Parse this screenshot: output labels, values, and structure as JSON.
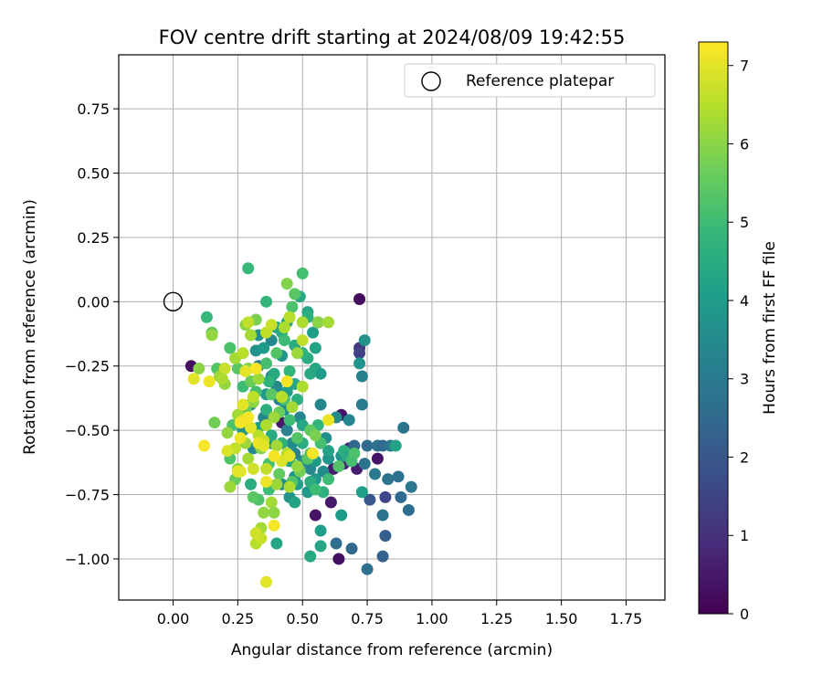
{
  "chart_data": {
    "type": "scatter",
    "title": "FOV centre drift starting at 2024/08/09 19:42:55",
    "xlabel": "Angular distance from reference (arcmin)",
    "ylabel": "Rotation from reference (arcmin)",
    "xlim": [
      -0.21,
      1.9
    ],
    "ylim": [
      -1.16,
      0.96
    ],
    "xticks": [
      0.0,
      0.25,
      0.5,
      0.75,
      1.0,
      1.25,
      1.5,
      1.75
    ],
    "yticks": [
      0.75,
      0.5,
      0.25,
      0.0,
      -0.25,
      -0.5,
      -0.75,
      -1.0
    ],
    "xtick_labels": [
      "0.00",
      "0.25",
      "0.50",
      "0.75",
      "1.00",
      "1.25",
      "1.50",
      "1.75"
    ],
    "ytick_labels": [
      "0.75",
      "0.50",
      "0.25",
      "0.00",
      "−0.25",
      "−0.50",
      "−0.75",
      "−1.00"
    ],
    "grid": true,
    "legend": {
      "position": "top-right",
      "label": "Reference platepar"
    },
    "reference_point": {
      "x": 0.0,
      "y": 0.0
    },
    "colorbar": {
      "label": "Hours from first FF file",
      "min": 0,
      "max": 7.3,
      "ticks": [
        0,
        1,
        2,
        3,
        4,
        5,
        6,
        7
      ],
      "tick_labels": [
        "0",
        "1",
        "2",
        "3",
        "4",
        "5",
        "6",
        "7"
      ],
      "colormap": "viridis"
    },
    "colormap_stops": [
      "#440154",
      "#482878",
      "#3e4989",
      "#31688e",
      "#26828e",
      "#1f9e89",
      "#35b779",
      "#6ece58",
      "#b5de2b",
      "#fde725"
    ],
    "points": [
      {
        "x": 0.72,
        "y": 0.01,
        "c": 0.2
      },
      {
        "x": 0.56,
        "y": -0.08,
        "c": 0.3
      },
      {
        "x": 0.07,
        "y": -0.25,
        "c": 0.3
      },
      {
        "x": 0.65,
        "y": -0.44,
        "c": 0.4
      },
      {
        "x": 0.42,
        "y": -0.47,
        "c": 0.5
      },
      {
        "x": 0.55,
        "y": -0.83,
        "c": 0.4
      },
      {
        "x": 0.64,
        "y": -1.0,
        "c": 0.3
      },
      {
        "x": 0.61,
        "y": -0.78,
        "c": 0.5
      },
      {
        "x": 0.62,
        "y": -0.65,
        "c": 0.6
      },
      {
        "x": 0.79,
        "y": -0.61,
        "c": 0.4
      },
      {
        "x": 0.71,
        "y": -0.65,
        "c": 0.6
      },
      {
        "x": 0.68,
        "y": -0.57,
        "c": 0.7
      },
      {
        "x": 0.66,
        "y": -0.63,
        "c": 0.8
      },
      {
        "x": 0.72,
        "y": -0.18,
        "c": 1.2
      },
      {
        "x": 0.72,
        "y": -0.2,
        "c": 1.5
      },
      {
        "x": 0.82,
        "y": -0.76,
        "c": 1.6
      },
      {
        "x": 0.76,
        "y": -0.77,
        "c": 2.0
      },
      {
        "x": 0.82,
        "y": -0.91,
        "c": 2.2
      },
      {
        "x": 0.81,
        "y": -0.99,
        "c": 2.3
      },
      {
        "x": 0.69,
        "y": -0.96,
        "c": 2.5
      },
      {
        "x": 0.63,
        "y": -0.94,
        "c": 2.6
      },
      {
        "x": 0.75,
        "y": -1.04,
        "c": 2.7
      },
      {
        "x": 0.81,
        "y": -0.83,
        "c": 2.8
      },
      {
        "x": 0.91,
        "y": -0.81,
        "c": 2.6
      },
      {
        "x": 0.88,
        "y": -0.76,
        "c": 2.5
      },
      {
        "x": 0.92,
        "y": -0.72,
        "c": 2.9
      },
      {
        "x": 0.87,
        "y": -0.68,
        "c": 2.7
      },
      {
        "x": 0.83,
        "y": -0.69,
        "c": 2.8
      },
      {
        "x": 0.78,
        "y": -0.67,
        "c": 3.0
      },
      {
        "x": 0.74,
        "y": -0.63,
        "c": 2.8
      },
      {
        "x": 0.7,
        "y": -0.56,
        "c": 2.4
      },
      {
        "x": 0.75,
        "y": -0.56,
        "c": 2.6
      },
      {
        "x": 0.79,
        "y": -0.56,
        "c": 2.7
      },
      {
        "x": 0.81,
        "y": -0.56,
        "c": 2.5
      },
      {
        "x": 0.84,
        "y": -0.56,
        "c": 2.9
      },
      {
        "x": 0.89,
        "y": -0.49,
        "c": 2.8
      },
      {
        "x": 0.73,
        "y": -0.4,
        "c": 3.0
      },
      {
        "x": 0.73,
        "y": -0.29,
        "c": 3.2
      },
      {
        "x": 0.72,
        "y": -0.24,
        "c": 3.8
      },
      {
        "x": 0.74,
        "y": -0.15,
        "c": 3.7
      },
      {
        "x": 0.63,
        "y": -0.45,
        "c": 3.5
      },
      {
        "x": 0.57,
        "y": -0.4,
        "c": 3.4
      },
      {
        "x": 0.68,
        "y": -0.46,
        "c": 3.3
      },
      {
        "x": 0.59,
        "y": -0.53,
        "c": 3.6
      },
      {
        "x": 0.6,
        "y": -0.61,
        "c": 3.8
      },
      {
        "x": 0.65,
        "y": -0.6,
        "c": 3.7
      },
      {
        "x": 0.58,
        "y": -0.66,
        "c": 3.5
      },
      {
        "x": 0.55,
        "y": -0.69,
        "c": 3.9
      },
      {
        "x": 0.53,
        "y": -0.65,
        "c": 3.4
      },
      {
        "x": 0.5,
        "y": -0.62,
        "c": 3.6
      },
      {
        "x": 0.47,
        "y": -0.59,
        "c": 3.3
      },
      {
        "x": 0.46,
        "y": -0.55,
        "c": 3.5
      },
      {
        "x": 0.44,
        "y": -0.5,
        "c": 3.2
      },
      {
        "x": 0.49,
        "y": -0.45,
        "c": 3.4
      },
      {
        "x": 0.43,
        "y": -0.42,
        "c": 3.6
      },
      {
        "x": 0.41,
        "y": -0.38,
        "c": 3.3
      },
      {
        "x": 0.4,
        "y": -0.33,
        "c": 3.5
      },
      {
        "x": 0.38,
        "y": -0.29,
        "c": 3.2
      },
      {
        "x": 0.33,
        "y": -0.25,
        "c": 3.1
      },
      {
        "x": 0.32,
        "y": -0.19,
        "c": 3.7
      },
      {
        "x": 0.33,
        "y": -0.13,
        "c": 3.6
      },
      {
        "x": 0.38,
        "y": -0.15,
        "c": 3.4
      },
      {
        "x": 0.42,
        "y": -0.21,
        "c": 3.8
      },
      {
        "x": 0.36,
        "y": -0.36,
        "c": 3.9
      },
      {
        "x": 0.3,
        "y": -0.4,
        "c": 3.5
      },
      {
        "x": 0.35,
        "y": -0.45,
        "c": 3.3
      },
      {
        "x": 0.27,
        "y": -0.5,
        "c": 3.7
      },
      {
        "x": 0.31,
        "y": -0.57,
        "c": 3.4
      },
      {
        "x": 0.38,
        "y": -0.55,
        "c": 3.6
      },
      {
        "x": 0.47,
        "y": -0.68,
        "c": 3.8
      },
      {
        "x": 0.42,
        "y": -0.71,
        "c": 3.5
      },
      {
        "x": 0.45,
        "y": -0.76,
        "c": 3.7
      },
      {
        "x": 0.52,
        "y": -0.74,
        "c": 3.9
      },
      {
        "x": 0.57,
        "y": -0.89,
        "c": 4.1
      },
      {
        "x": 0.65,
        "y": -0.83,
        "c": 4.0
      },
      {
        "x": 0.57,
        "y": -0.95,
        "c": 4.3
      },
      {
        "x": 0.53,
        "y": -0.99,
        "c": 4.4
      },
      {
        "x": 0.4,
        "y": -0.94,
        "c": 4.3
      },
      {
        "x": 0.47,
        "y": -0.78,
        "c": 4.2
      },
      {
        "x": 0.48,
        "y": -0.71,
        "c": 4.1
      },
      {
        "x": 0.53,
        "y": -0.7,
        "c": 4.5
      },
      {
        "x": 0.55,
        "y": -0.62,
        "c": 4.0
      },
      {
        "x": 0.6,
        "y": -0.58,
        "c": 4.2
      },
      {
        "x": 0.66,
        "y": -0.58,
        "c": 4.6
      },
      {
        "x": 0.67,
        "y": -0.6,
        "c": 4.4
      },
      {
        "x": 0.86,
        "y": -0.56,
        "c": 4.2
      },
      {
        "x": 0.73,
        "y": -0.74,
        "c": 4.1
      },
      {
        "x": 0.55,
        "y": -0.26,
        "c": 4.3
      },
      {
        "x": 0.57,
        "y": -0.28,
        "c": 4.0
      },
      {
        "x": 0.53,
        "y": -0.28,
        "c": 4.4
      },
      {
        "x": 0.52,
        "y": -0.22,
        "c": 4.5
      },
      {
        "x": 0.55,
        "y": -0.18,
        "c": 4.2
      },
      {
        "x": 0.52,
        "y": -0.04,
        "c": 4.3
      },
      {
        "x": 0.52,
        "y": -0.06,
        "c": 4.6
      },
      {
        "x": 0.49,
        "y": 0.02,
        "c": 4.4
      },
      {
        "x": 0.54,
        "y": -0.12,
        "c": 4.1
      },
      {
        "x": 0.5,
        "y": -0.2,
        "c": 4.7
      },
      {
        "x": 0.47,
        "y": -0.17,
        "c": 4.5
      },
      {
        "x": 0.45,
        "y": -0.27,
        "c": 4.8
      },
      {
        "x": 0.47,
        "y": -0.32,
        "c": 4.3
      },
      {
        "x": 0.48,
        "y": -0.38,
        "c": 4.6
      },
      {
        "x": 0.44,
        "y": -0.35,
        "c": 4.1
      },
      {
        "x": 0.39,
        "y": -0.28,
        "c": 4.4
      },
      {
        "x": 0.37,
        "y": -0.31,
        "c": 4.7
      },
      {
        "x": 0.35,
        "y": -0.18,
        "c": 4.0
      },
      {
        "x": 0.4,
        "y": -0.1,
        "c": 4.2
      },
      {
        "x": 0.42,
        "y": -0.12,
        "c": 4.5
      },
      {
        "x": 0.44,
        "y": -0.08,
        "c": 4.3
      },
      {
        "x": 0.36,
        "y": -0.42,
        "c": 4.6
      },
      {
        "x": 0.33,
        "y": -0.49,
        "c": 4.1
      },
      {
        "x": 0.38,
        "y": -0.52,
        "c": 4.4
      },
      {
        "x": 0.42,
        "y": -0.55,
        "c": 4.7
      },
      {
        "x": 0.45,
        "y": -0.62,
        "c": 4.2
      },
      {
        "x": 0.5,
        "y": -0.55,
        "c": 4.5
      },
      {
        "x": 0.5,
        "y": -0.48,
        "c": 4.3
      },
      {
        "x": 0.56,
        "y": -0.48,
        "c": 4.8
      },
      {
        "x": 0.36,
        "y": 0.0,
        "c": 4.8
      },
      {
        "x": 0.29,
        "y": 0.13,
        "c": 4.9
      },
      {
        "x": 0.13,
        "y": -0.06,
        "c": 4.9
      },
      {
        "x": 0.3,
        "y": -0.71,
        "c": 4.5
      },
      {
        "x": 0.58,
        "y": -0.74,
        "c": 4.6
      },
      {
        "x": 0.55,
        "y": -0.73,
        "c": 5.0
      },
      {
        "x": 0.69,
        "y": -0.62,
        "c": 5.1
      },
      {
        "x": 0.7,
        "y": -0.59,
        "c": 5.2
      },
      {
        "x": 0.64,
        "y": -0.64,
        "c": 5.3
      },
      {
        "x": 0.6,
        "y": -0.69,
        "c": 5.0
      },
      {
        "x": 0.53,
        "y": -0.59,
        "c": 5.4
      },
      {
        "x": 0.57,
        "y": -0.55,
        "c": 5.1
      },
      {
        "x": 0.53,
        "y": -0.5,
        "c": 5.5
      },
      {
        "x": 0.48,
        "y": -0.53,
        "c": 5.3
      },
      {
        "x": 0.45,
        "y": -0.46,
        "c": 5.0
      },
      {
        "x": 0.41,
        "y": -0.43,
        "c": 5.6
      },
      {
        "x": 0.43,
        "y": -0.38,
        "c": 5.2
      },
      {
        "x": 0.38,
        "y": -0.36,
        "c": 5.4
      },
      {
        "x": 0.36,
        "y": -0.24,
        "c": 5.1
      },
      {
        "x": 0.4,
        "y": -0.2,
        "c": 5.3
      },
      {
        "x": 0.43,
        "y": -0.15,
        "c": 5.0
      },
      {
        "x": 0.45,
        "y": -0.06,
        "c": 5.5
      },
      {
        "x": 0.46,
        "y": -0.02,
        "c": 5.2
      },
      {
        "x": 0.47,
        "y": 0.03,
        "c": 5.4
      },
      {
        "x": 0.5,
        "y": 0.11,
        "c": 5.1
      },
      {
        "x": 0.22,
        "y": -0.18,
        "c": 5.2
      },
      {
        "x": 0.17,
        "y": -0.26,
        "c": 5.3
      },
      {
        "x": 0.15,
        "y": -0.12,
        "c": 5.5
      },
      {
        "x": 0.25,
        "y": -0.26,
        "c": 5.4
      },
      {
        "x": 0.27,
        "y": -0.33,
        "c": 5.0
      },
      {
        "x": 0.3,
        "y": -0.31,
        "c": 5.6
      },
      {
        "x": 0.32,
        "y": -0.35,
        "c": 5.1
      },
      {
        "x": 0.28,
        "y": -0.42,
        "c": 5.5
      },
      {
        "x": 0.23,
        "y": -0.48,
        "c": 5.2
      },
      {
        "x": 0.16,
        "y": -0.47,
        "c": 5.7
      },
      {
        "x": 0.22,
        "y": -0.61,
        "c": 5.3
      },
      {
        "x": 0.24,
        "y": -0.69,
        "c": 5.6
      },
      {
        "x": 0.33,
        "y": -0.77,
        "c": 5.2
      },
      {
        "x": 0.37,
        "y": -0.73,
        "c": 5.0
      },
      {
        "x": 0.31,
        "y": -0.76,
        "c": 5.4
      },
      {
        "x": 0.37,
        "y": -0.63,
        "c": 5.1
      },
      {
        "x": 0.41,
        "y": -0.67,
        "c": 5.5
      },
      {
        "x": 0.46,
        "y": -0.7,
        "c": 5.3
      },
      {
        "x": 0.49,
        "y": -0.66,
        "c": 5.7
      },
      {
        "x": 0.52,
        "y": -0.61,
        "c": 5.4
      },
      {
        "x": 0.55,
        "y": -0.52,
        "c": 5.8
      },
      {
        "x": 0.44,
        "y": 0.07,
        "c": 5.9
      },
      {
        "x": 0.32,
        "y": -0.07,
        "c": 5.8
      },
      {
        "x": 0.28,
        "y": -0.09,
        "c": 6.0
      },
      {
        "x": 0.2,
        "y": -0.32,
        "c": 6.1
      },
      {
        "x": 0.1,
        "y": -0.26,
        "c": 6.0
      },
      {
        "x": 0.18,
        "y": -0.29,
        "c": 6.2
      },
      {
        "x": 0.15,
        "y": -0.13,
        "c": 6.1
      },
      {
        "x": 0.24,
        "y": -0.22,
        "c": 6.3
      },
      {
        "x": 0.29,
        "y": -0.26,
        "c": 5.9
      },
      {
        "x": 0.33,
        "y": -0.3,
        "c": 6.2
      },
      {
        "x": 0.31,
        "y": -0.39,
        "c": 6.0
      },
      {
        "x": 0.25,
        "y": -0.44,
        "c": 6.3
      },
      {
        "x": 0.21,
        "y": -0.51,
        "c": 6.1
      },
      {
        "x": 0.28,
        "y": -0.55,
        "c": 6.2
      },
      {
        "x": 0.34,
        "y": -0.57,
        "c": 5.9
      },
      {
        "x": 0.29,
        "y": -0.61,
        "c": 6.3
      },
      {
        "x": 0.25,
        "y": -0.65,
        "c": 6.0
      },
      {
        "x": 0.22,
        "y": -0.72,
        "c": 6.2
      },
      {
        "x": 0.35,
        "y": -0.82,
        "c": 6.1
      },
      {
        "x": 0.38,
        "y": -0.78,
        "c": 6.3
      },
      {
        "x": 0.39,
        "y": -0.82,
        "c": 6.0
      },
      {
        "x": 0.4,
        "y": -0.71,
        "c": 6.2
      },
      {
        "x": 0.45,
        "y": -0.72,
        "c": 6.4
      },
      {
        "x": 0.48,
        "y": -0.64,
        "c": 6.1
      },
      {
        "x": 0.44,
        "y": -0.59,
        "c": 6.5
      },
      {
        "x": 0.4,
        "y": -0.56,
        "c": 6.3
      },
      {
        "x": 0.36,
        "y": -0.48,
        "c": 6.4
      },
      {
        "x": 0.39,
        "y": -0.45,
        "c": 6.2
      },
      {
        "x": 0.42,
        "y": -0.37,
        "c": 6.5
      },
      {
        "x": 0.46,
        "y": -0.41,
        "c": 6.3
      },
      {
        "x": 0.5,
        "y": -0.33,
        "c": 6.4
      },
      {
        "x": 0.48,
        "y": -0.2,
        "c": 6.2
      },
      {
        "x": 0.5,
        "y": -0.15,
        "c": 6.6
      },
      {
        "x": 0.43,
        "y": -0.1,
        "c": 6.4
      },
      {
        "x": 0.36,
        "y": -0.12,
        "c": 6.6
      },
      {
        "x": 0.3,
        "y": -0.13,
        "c": 6.3
      },
      {
        "x": 0.27,
        "y": -0.2,
        "c": 6.5
      },
      {
        "x": 0.2,
        "y": -0.26,
        "c": 6.7
      },
      {
        "x": 0.19,
        "y": -0.3,
        "c": 6.4
      },
      {
        "x": 0.31,
        "y": -0.37,
        "c": 6.6
      },
      {
        "x": 0.27,
        "y": -0.46,
        "c": 6.8
      },
      {
        "x": 0.33,
        "y": -0.52,
        "c": 6.5
      },
      {
        "x": 0.35,
        "y": -0.54,
        "c": 6.7
      },
      {
        "x": 0.24,
        "y": -0.57,
        "c": 6.6
      },
      {
        "x": 0.21,
        "y": -0.58,
        "c": 6.9
      },
      {
        "x": 0.31,
        "y": -0.65,
        "c": 6.8
      },
      {
        "x": 0.36,
        "y": -0.65,
        "c": 6.6
      },
      {
        "x": 0.42,
        "y": -0.62,
        "c": 6.9
      },
      {
        "x": 0.32,
        "y": -0.94,
        "c": 6.5
      },
      {
        "x": 0.34,
        "y": -0.92,
        "c": 6.7
      },
      {
        "x": 0.34,
        "y": -0.88,
        "c": 6.3
      },
      {
        "x": 0.32,
        "y": -0.9,
        "c": 6.8
      },
      {
        "x": 0.56,
        "y": -0.08,
        "c": 6.0
      },
      {
        "x": 0.5,
        "y": -0.08,
        "c": 6.4
      },
      {
        "x": 0.29,
        "y": -0.08,
        "c": 6.6
      },
      {
        "x": 0.38,
        "y": -0.09,
        "c": 6.7
      },
      {
        "x": 0.45,
        "y": -0.06,
        "c": 6.5
      },
      {
        "x": 0.6,
        "y": -0.08,
        "c": 6.3
      },
      {
        "x": 0.12,
        "y": -0.56,
        "c": 7.2
      },
      {
        "x": 0.14,
        "y": -0.31,
        "c": 7.1
      },
      {
        "x": 0.08,
        "y": -0.3,
        "c": 7.0
      },
      {
        "x": 0.26,
        "y": -0.47,
        "c": 7.2
      },
      {
        "x": 0.3,
        "y": -0.49,
        "c": 7.0
      },
      {
        "x": 0.26,
        "y": -0.53,
        "c": 7.1
      },
      {
        "x": 0.28,
        "y": -0.27,
        "c": 7.0
      },
      {
        "x": 0.32,
        "y": -0.26,
        "c": 7.2
      },
      {
        "x": 0.33,
        "y": -0.55,
        "c": 7.1
      },
      {
        "x": 0.35,
        "y": -0.56,
        "c": 7.0
      },
      {
        "x": 0.39,
        "y": -0.6,
        "c": 7.2
      },
      {
        "x": 0.36,
        "y": -0.7,
        "c": 7.1
      },
      {
        "x": 0.39,
        "y": -0.87,
        "c": 7.2
      },
      {
        "x": 0.36,
        "y": -1.09,
        "c": 7.0
      },
      {
        "x": 0.44,
        "y": -0.31,
        "c": 7.2
      },
      {
        "x": 0.6,
        "y": -0.46,
        "c": 7.1
      },
      {
        "x": 0.45,
        "y": -0.6,
        "c": 7.0
      },
      {
        "x": 0.54,
        "y": -0.59,
        "c": 7.2
      },
      {
        "x": 0.25,
        "y": -0.66,
        "c": 7.1
      },
      {
        "x": 0.27,
        "y": -0.4,
        "c": 7.0
      },
      {
        "x": 0.29,
        "y": -0.45,
        "c": 7.2
      },
      {
        "x": 0.26,
        "y": -0.66,
        "c": 7.0
      }
    ]
  }
}
